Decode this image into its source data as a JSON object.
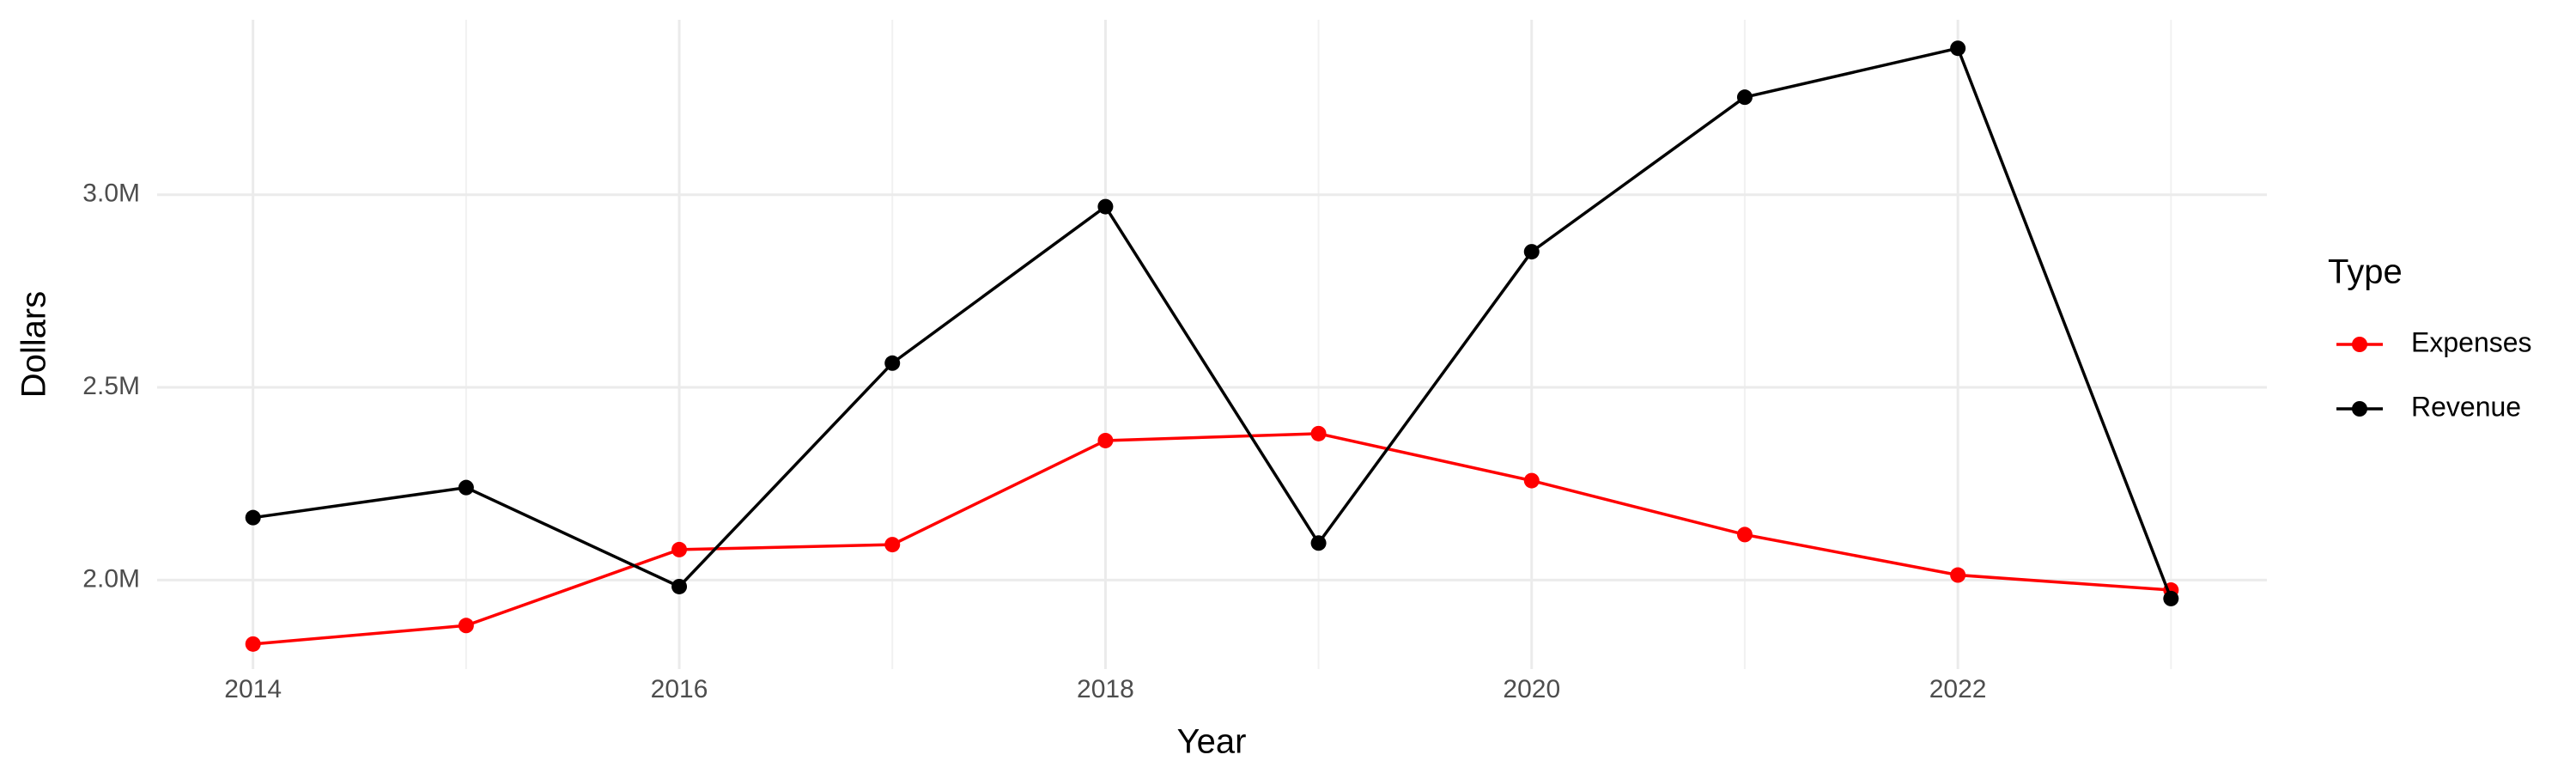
{
  "chart_data": {
    "type": "line",
    "x_label": "Year",
    "y_label": "Dollars",
    "legend_title": "Type",
    "legend_position": "right",
    "grid": true,
    "x": [
      2014,
      2015,
      2016,
      2017,
      2018,
      2019,
      2020,
      2021,
      2022,
      2023
    ],
    "series": [
      {
        "name": "Expenses",
        "color": "#ff0000",
        "values": [
          1834000,
          1882000,
          2079000,
          2092000,
          2362000,
          2380000,
          2258000,
          2118000,
          2013000,
          1974000
        ]
      },
      {
        "name": "Revenue",
        "color": "#000000",
        "values": [
          2162000,
          2240000,
          1983000,
          2563000,
          2969000,
          2096000,
          2852000,
          3253000,
          3380000,
          1952000
        ]
      }
    ],
    "xlim": [
      2013.55,
      2023.45
    ],
    "xticks": [
      2014,
      2016,
      2018,
      2020,
      2022
    ],
    "ylim": [
      1769000,
      3454000
    ],
    "yticks": [
      {
        "value": 2000000,
        "label": "2.0M"
      },
      {
        "value": 2500000,
        "label": "2.5M"
      },
      {
        "value": 3000000,
        "label": "3.0M"
      }
    ]
  }
}
